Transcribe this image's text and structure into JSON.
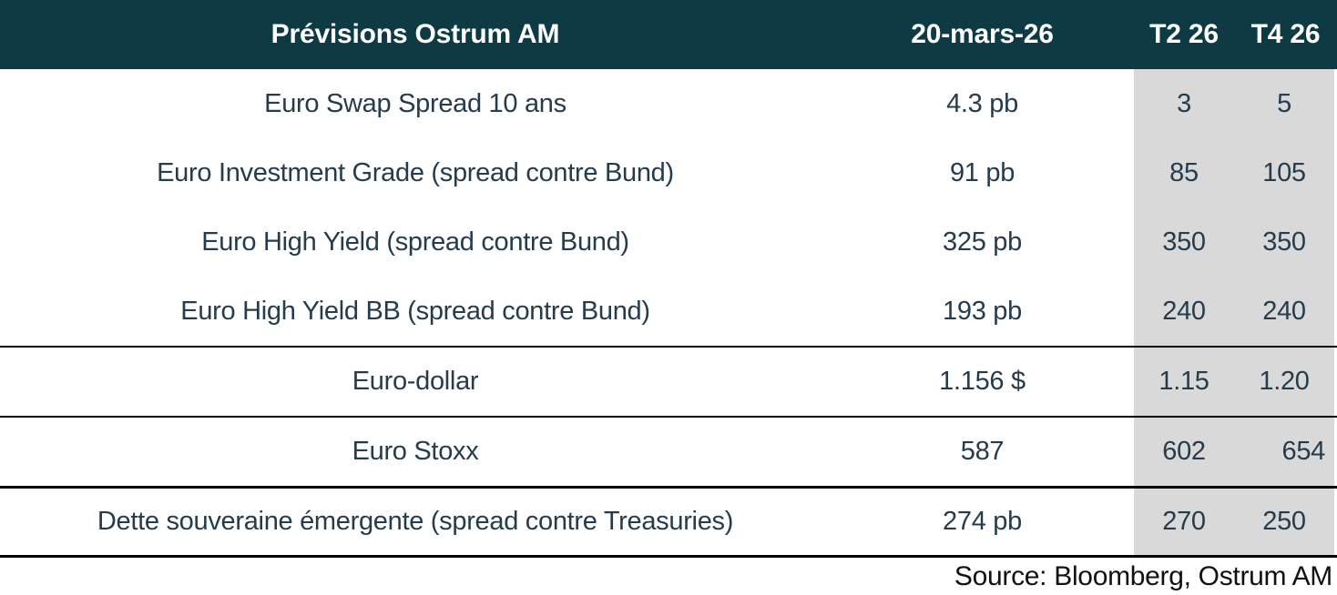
{
  "table": {
    "header": {
      "title": "Prévisions Ostrum AM",
      "date_col": "20-mars-26",
      "t2_col": "T2 26",
      "t4_col": "T4 26"
    },
    "rows": [
      {
        "label": "Euro Swap Spread 10 ans",
        "current": "4.3 pb",
        "t2": "3",
        "t4": "5"
      },
      {
        "label": "Euro Investment Grade (spread contre Bund)",
        "current": "91 pb",
        "t2": "85",
        "t4": "105"
      },
      {
        "label": "Euro High Yield (spread contre Bund)",
        "current": "325 pb",
        "t2": "350",
        "t4": "350"
      },
      {
        "label": "Euro High Yield BB (spread contre Bund)",
        "current": "193 pb",
        "t2": "240",
        "t4": "240"
      },
      {
        "label": "Euro-dollar",
        "current": "1.156 $",
        "t2": "1.15",
        "t4": "1.20"
      },
      {
        "label": "Euro Stoxx",
        "current": "587",
        "t2": "602",
        "t4": "654"
      },
      {
        "label": "Dette souveraine émergente (spread contre Treasuries)",
        "current": "274 pb",
        "t2": "270",
        "t4": "250"
      }
    ],
    "source": "Source: Bloomberg, Ostrum AM",
    "colors": {
      "header_bg": "#0e3b43",
      "header_text": "#ffffff",
      "body_text": "#253c4d",
      "forecast_bg": "#d9d9d9",
      "divider": "#000000",
      "source_text": "#111111"
    }
  }
}
